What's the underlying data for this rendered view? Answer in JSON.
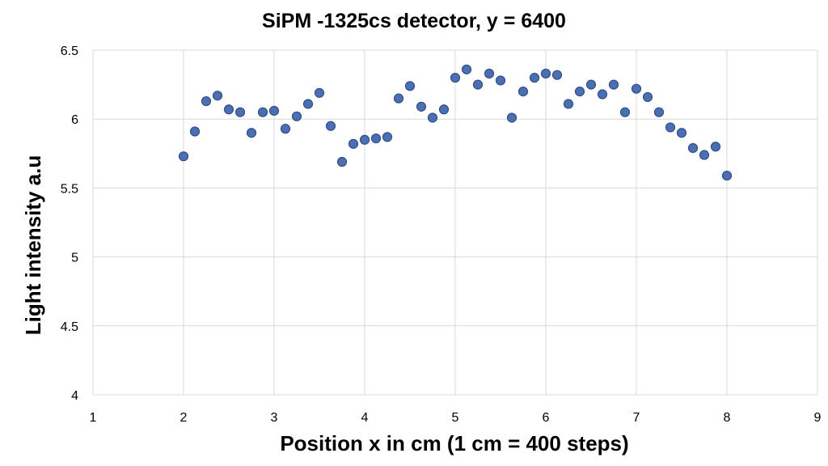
{
  "chart_data": {
    "type": "scatter",
    "title": "SiPM -1325cs detector, y = 6400",
    "xlabel": "Position x in cm (1 cm = 400 steps)",
    "ylabel": "Light intensity a.u",
    "xlim": [
      1,
      9
    ],
    "ylim": [
      4,
      6.5
    ],
    "xticks": [
      "1",
      "2",
      "3",
      "4",
      "5",
      "6",
      "7",
      "8",
      "9"
    ],
    "yticks": [
      "4",
      "4.5",
      "5",
      "5.5",
      "6",
      "6.5"
    ],
    "grid": true,
    "series": [
      {
        "color": "#4a6fb5",
        "points": [
          [
            2.0,
            5.73
          ],
          [
            2.125,
            5.91
          ],
          [
            2.25,
            6.13
          ],
          [
            2.375,
            6.17
          ],
          [
            2.5,
            6.07
          ],
          [
            2.625,
            6.05
          ],
          [
            2.75,
            5.9
          ],
          [
            2.875,
            6.05
          ],
          [
            3.0,
            6.06
          ],
          [
            3.125,
            5.93
          ],
          [
            3.25,
            6.02
          ],
          [
            3.375,
            6.11
          ],
          [
            3.5,
            6.19
          ],
          [
            3.625,
            5.95
          ],
          [
            3.75,
            5.69
          ],
          [
            3.875,
            5.82
          ],
          [
            4.0,
            5.85
          ],
          [
            4.125,
            5.86
          ],
          [
            4.25,
            5.87
          ],
          [
            4.375,
            6.15
          ],
          [
            4.5,
            6.24
          ],
          [
            4.625,
            6.09
          ],
          [
            4.75,
            6.01
          ],
          [
            4.875,
            6.07
          ],
          [
            5.0,
            6.3
          ],
          [
            5.125,
            6.36
          ],
          [
            5.25,
            6.25
          ],
          [
            5.375,
            6.33
          ],
          [
            5.5,
            6.28
          ],
          [
            5.625,
            6.01
          ],
          [
            5.75,
            6.2
          ],
          [
            5.875,
            6.3
          ],
          [
            6.0,
            6.33
          ],
          [
            6.125,
            6.32
          ],
          [
            6.25,
            6.11
          ],
          [
            6.375,
            6.2
          ],
          [
            6.5,
            6.25
          ],
          [
            6.625,
            6.18
          ],
          [
            6.75,
            6.25
          ],
          [
            6.875,
            6.05
          ],
          [
            7.0,
            6.22
          ],
          [
            7.125,
            6.16
          ],
          [
            7.25,
            6.05
          ],
          [
            7.375,
            5.94
          ],
          [
            7.5,
            5.9
          ],
          [
            7.625,
            5.79
          ],
          [
            7.75,
            5.74
          ],
          [
            7.875,
            5.8
          ],
          [
            8.0,
            5.59
          ]
        ]
      }
    ]
  }
}
